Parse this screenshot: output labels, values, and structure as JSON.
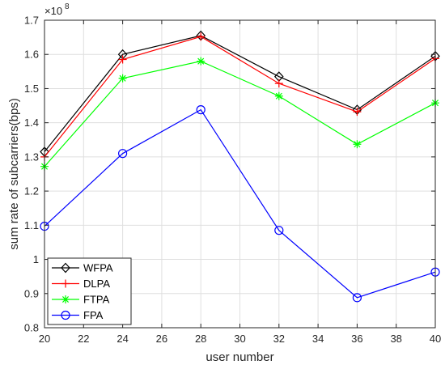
{
  "chart_data": {
    "type": "line",
    "title": "",
    "xlabel": "user number",
    "ylabel": "sum rate of subcarriers(bps)",
    "y_multiplier": "×10",
    "y_exponent": "8",
    "x": [
      20,
      24,
      28,
      32,
      36,
      40
    ],
    "xlim": [
      20,
      40
    ],
    "ylim": [
      0.8,
      1.7
    ],
    "xticks": [
      20,
      22,
      24,
      26,
      28,
      30,
      32,
      34,
      36,
      38,
      40
    ],
    "yticks": [
      0.8,
      0.9,
      1,
      1.1,
      1.2,
      1.3,
      1.4,
      1.5,
      1.6,
      1.7
    ],
    "ytick_labels": [
      "0.8",
      "0.9",
      "1",
      "1.1",
      "1.2",
      "1.3",
      "1.4",
      "1.5",
      "1.6",
      "1.7"
    ],
    "grid": true,
    "legend_position": "bottom-left",
    "series": [
      {
        "name": "WFPA",
        "color": "#000000",
        "marker": "diamond",
        "values": [
          1.315,
          1.6,
          1.655,
          1.535,
          1.438,
          1.595
        ]
      },
      {
        "name": "DLPA",
        "color": "#ff0000",
        "marker": "plus",
        "values": [
          1.3,
          1.585,
          1.652,
          1.515,
          1.432,
          1.588
        ]
      },
      {
        "name": "FTPA",
        "color": "#00ff00",
        "marker": "asterisk",
        "values": [
          1.272,
          1.53,
          1.58,
          1.478,
          1.337,
          1.458
        ]
      },
      {
        "name": "FPA",
        "color": "#0000ff",
        "marker": "circle",
        "values": [
          1.097,
          1.31,
          1.438,
          1.085,
          0.888,
          0.963
        ]
      }
    ]
  }
}
